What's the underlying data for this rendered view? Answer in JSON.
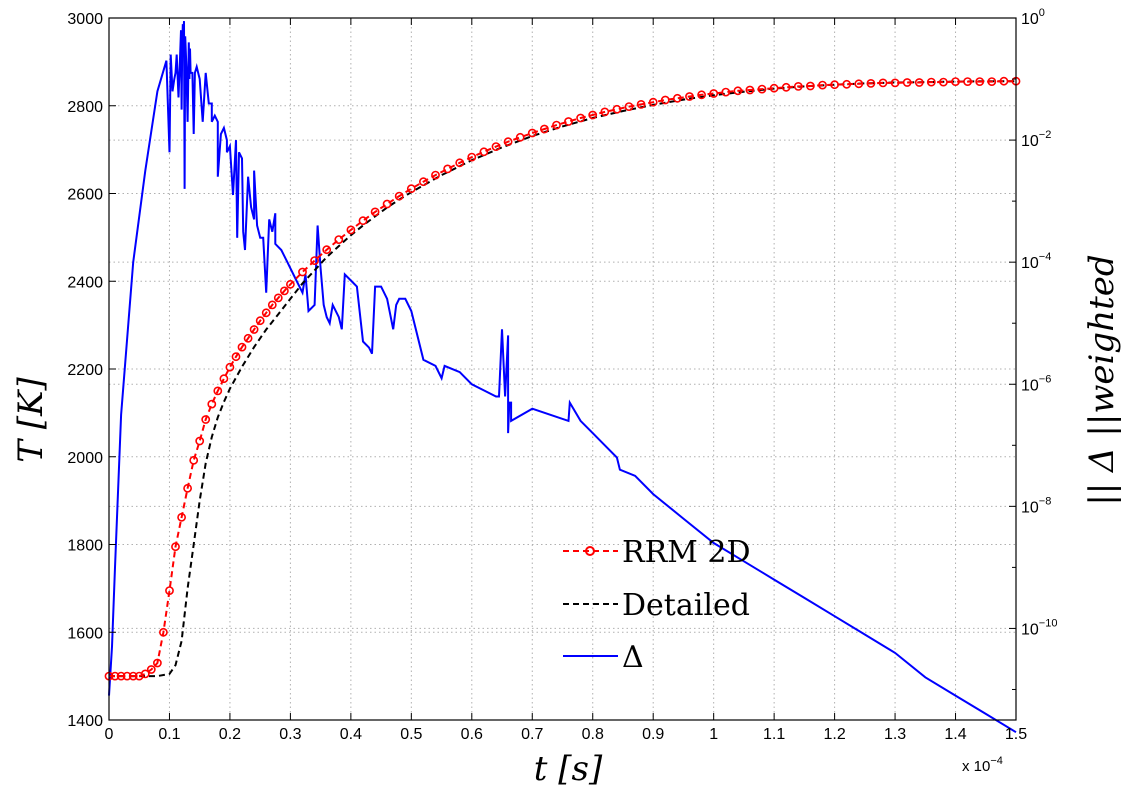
{
  "chart_data": {
    "type": "line",
    "x_multiplier": "x 10",
    "x_multiplier_exp": "−4",
    "xlabel": "t [s]",
    "ylabel_left": "T [K]",
    "ylabel_right": "|| Δ ||weighted",
    "xlim": [
      0,
      1.5
    ],
    "ylim_left": [
      1400,
      3000
    ],
    "ylim_right_log10": [
      -11.5,
      0
    ],
    "y_scale_right": "log",
    "grid": true,
    "legend_position": "lower-center",
    "x_ticks": [
      "0",
      "0.1",
      "0.2",
      "0.3",
      "0.4",
      "0.5",
      "0.6",
      "0.7",
      "0.8",
      "0.9",
      "1",
      "1.1",
      "1.2",
      "1.3",
      "1.4",
      "1.5"
    ],
    "y_ticks_left": [
      "1400",
      "1600",
      "1800",
      "2000",
      "2200",
      "2400",
      "2600",
      "2800",
      "3000"
    ],
    "y_ticks_right": [
      {
        "base": "10",
        "exp": "0"
      },
      {
        "base": "10",
        "exp": "−2"
      },
      {
        "base": "10",
        "exp": "−4"
      },
      {
        "base": "10",
        "exp": "−6"
      },
      {
        "base": "10",
        "exp": "−8"
      },
      {
        "base": "10",
        "exp": "−10"
      }
    ],
    "series": [
      {
        "name": "RRM 2D",
        "color": "#ff0000",
        "style": "dashed-circle-markers",
        "axis": "left",
        "x": [
          0,
          0.01,
          0.02,
          0.03,
          0.04,
          0.05,
          0.06,
          0.07,
          0.08,
          0.09,
          0.1,
          0.11,
          0.12,
          0.13,
          0.14,
          0.15,
          0.16,
          0.17,
          0.18,
          0.19,
          0.2,
          0.21,
          0.22,
          0.23,
          0.24,
          0.25,
          0.26,
          0.27,
          0.28,
          0.29,
          0.3,
          0.32,
          0.34,
          0.36,
          0.38,
          0.4,
          0.42,
          0.44,
          0.46,
          0.48,
          0.5,
          0.52,
          0.54,
          0.56,
          0.58,
          0.6,
          0.62,
          0.64,
          0.66,
          0.68,
          0.7,
          0.72,
          0.74,
          0.76,
          0.78,
          0.8,
          0.82,
          0.84,
          0.86,
          0.88,
          0.9,
          0.92,
          0.94,
          0.96,
          0.98,
          1.0,
          1.02,
          1.04,
          1.06,
          1.08,
          1.1,
          1.12,
          1.14,
          1.16,
          1.18,
          1.2,
          1.22,
          1.24,
          1.26,
          1.28,
          1.3,
          1.32,
          1.34,
          1.36,
          1.38,
          1.4,
          1.42,
          1.44,
          1.46,
          1.48,
          1.5
        ],
        "y": [
          1500,
          1500,
          1500,
          1500,
          1500,
          1500,
          1505,
          1515,
          1530,
          1600,
          1695,
          1795,
          1862,
          1928,
          1992,
          2036,
          2085,
          2120,
          2150,
          2178,
          2204,
          2228,
          2250,
          2270,
          2290,
          2310,
          2328,
          2346,
          2362,
          2378,
          2393,
          2421,
          2447,
          2472,
          2495,
          2517,
          2538,
          2558,
          2576,
          2594,
          2611,
          2627,
          2642,
          2656,
          2670,
          2683,
          2695,
          2707,
          2718,
          2728,
          2738,
          2747,
          2756,
          2764,
          2772,
          2779,
          2786,
          2792,
          2798,
          2803,
          2808,
          2813,
          2817,
          2821,
          2825,
          2828,
          2831,
          2834,
          2836,
          2838,
          2840,
          2842,
          2844,
          2845,
          2847,
          2848,
          2849,
          2850,
          2851,
          2852,
          2852,
          2853,
          2853,
          2854,
          2854,
          2855,
          2855,
          2855,
          2855,
          2856,
          2856
        ]
      },
      {
        "name": "Detailed",
        "color": "#000000",
        "style": "dashed",
        "axis": "left",
        "x": [
          0,
          0.02,
          0.04,
          0.06,
          0.08,
          0.1,
          0.11,
          0.12,
          0.13,
          0.14,
          0.15,
          0.16,
          0.17,
          0.18,
          0.19,
          0.2,
          0.22,
          0.24,
          0.26,
          0.28,
          0.3,
          0.32,
          0.34,
          0.36,
          0.38,
          0.4,
          0.42,
          0.44,
          0.46,
          0.48,
          0.5,
          0.55,
          0.6,
          0.65,
          0.7,
          0.75,
          0.8,
          0.85,
          0.9,
          0.95,
          1.0,
          1.05,
          1.1,
          1.15,
          1.2,
          1.25,
          1.3,
          1.35,
          1.4,
          1.45,
          1.5
        ],
        "y": [
          1500,
          1500,
          1500,
          1500,
          1500,
          1505,
          1525,
          1580,
          1700,
          1800,
          1900,
          1985,
          2045,
          2090,
          2125,
          2155,
          2205,
          2250,
          2290,
          2325,
          2360,
          2395,
          2425,
          2455,
          2480,
          2505,
          2527,
          2548,
          2568,
          2586,
          2603,
          2642,
          2676,
          2705,
          2731,
          2753,
          2772,
          2788,
          2802,
          2814,
          2824,
          2832,
          2839,
          2844,
          2848,
          2851,
          2853,
          2854,
          2855,
          2856,
          2856
        ]
      },
      {
        "name": "Δ",
        "color": "#0000ff",
        "style": "solid",
        "axis": "right",
        "x": [
          0,
          0.005,
          0.01,
          0.02,
          0.04,
          0.06,
          0.08,
          0.095,
          0.1,
          0.102,
          0.105,
          0.108,
          0.11,
          0.112,
          0.115,
          0.117,
          0.119,
          0.12,
          0.121,
          0.122,
          0.123,
          0.124,
          0.125,
          0.126,
          0.128,
          0.13,
          0.132,
          0.133,
          0.134,
          0.135,
          0.138,
          0.14,
          0.142,
          0.145,
          0.15,
          0.155,
          0.16,
          0.165,
          0.17,
          0.17,
          0.175,
          0.18,
          0.18,
          0.185,
          0.19,
          0.195,
          0.195,
          0.2,
          0.205,
          0.21,
          0.212,
          0.215,
          0.22,
          0.222,
          0.225,
          0.23,
          0.235,
          0.24,
          0.24,
          0.245,
          0.25,
          0.255,
          0.26,
          0.265,
          0.27,
          0.275,
          0.275,
          0.285,
          0.295,
          0.3,
          0.31,
          0.32,
          0.325,
          0.33,
          0.34,
          0.345,
          0.35,
          0.355,
          0.36,
          0.365,
          0.37,
          0.38,
          0.385,
          0.39,
          0.4,
          0.41,
          0.42,
          0.43,
          0.435,
          0.44,
          0.45,
          0.46,
          0.47,
          0.475,
          0.48,
          0.485,
          0.49,
          0.5,
          0.52,
          0.54,
          0.55,
          0.555,
          0.58,
          0.6,
          0.62,
          0.64,
          0.645,
          0.65,
          0.655,
          0.66,
          0.66,
          0.662,
          0.665,
          0.665,
          0.7,
          0.73,
          0.76,
          0.762,
          0.78,
          0.8,
          0.82,
          0.84,
          0.845,
          0.87,
          0.9,
          0.95,
          1.0,
          1.05,
          1.1,
          1.15,
          1.2,
          1.25,
          1.3,
          1.35,
          1.4,
          1.45,
          1.5
        ],
        "y_log10": [
          -11.1,
          -10.3,
          -9.0,
          -6.5,
          -4.0,
          -2.5,
          -1.2,
          -0.7,
          -2.2,
          -0.6,
          -1.2,
          -1.0,
          -0.9,
          -0.6,
          -1.3,
          -0.8,
          -0.2,
          -1.5,
          -0.5,
          -0.1,
          -0.3,
          -0.05,
          -2.8,
          -0.3,
          -0.8,
          -1.7,
          -0.4,
          -1.0,
          -0.5,
          -0.9,
          -0.9,
          -1.9,
          -0.9,
          -0.8,
          -1.0,
          -1.7,
          -0.9,
          -1.4,
          -1.4,
          -1.7,
          -1.6,
          -1.7,
          -2.6,
          -1.9,
          -1.8,
          -2.0,
          -2.2,
          -2.1,
          -2.9,
          -2.0,
          -3.6,
          -2.2,
          -2.3,
          -3.5,
          -3.8,
          -2.6,
          -3.1,
          -3.3,
          -2.5,
          -3.4,
          -3.6,
          -3.6,
          -4.5,
          -3.3,
          -3.5,
          -3.2,
          -3.7,
          -3.8,
          -4.0,
          -4.1,
          -4.3,
          -4.5,
          -4.2,
          -4.8,
          -4.7,
          -3.4,
          -4.1,
          -4.7,
          -4.9,
          -5.0,
          -4.7,
          -4.9,
          -5.1,
          -4.2,
          -4.3,
          -4.4,
          -5.3,
          -5.4,
          -5.5,
          -4.4,
          -4.4,
          -4.6,
          -5.1,
          -4.7,
          -4.6,
          -4.6,
          -4.6,
          -4.8,
          -5.6,
          -5.7,
          -5.9,
          -5.7,
          -5.8,
          -6.0,
          -6.1,
          -6.2,
          -6.2,
          -5.1,
          -6.2,
          -5.2,
          -6.8,
          -6.3,
          -6.3,
          -6.6,
          -6.4,
          -6.5,
          -6.6,
          -6.3,
          -6.6,
          -6.8,
          -7.0,
          -7.2,
          -7.4,
          -7.5,
          -7.8,
          -8.2,
          -8.6,
          -8.9,
          -9.2,
          -9.5,
          -9.8,
          -10.1,
          -10.4,
          -10.8,
          -11.1,
          -11.4,
          -11.7
        ]
      }
    ]
  }
}
